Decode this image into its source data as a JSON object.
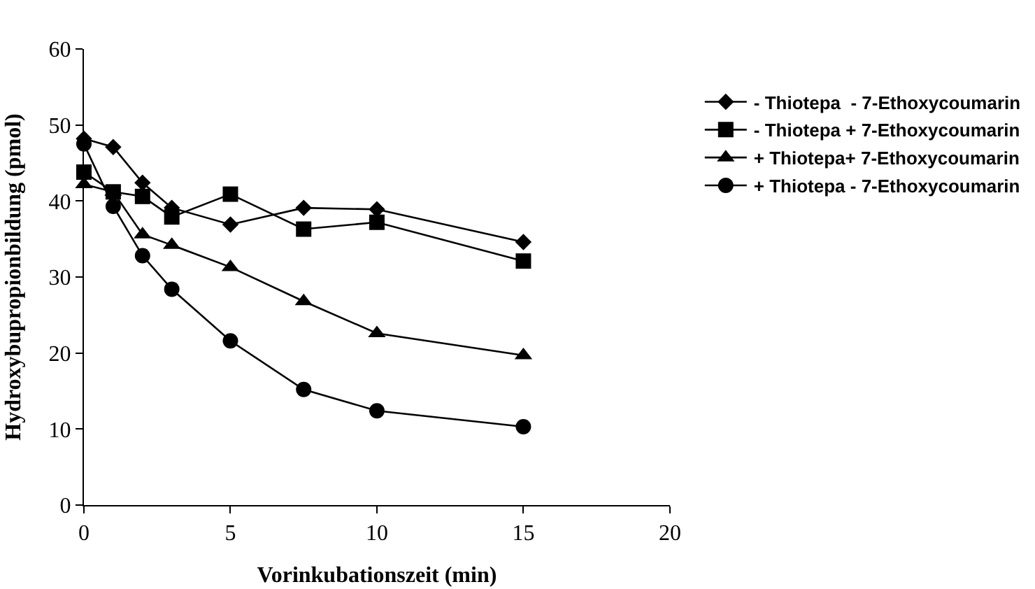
{
  "chart_data": {
    "type": "line",
    "xlabel": "Vorinkubationszeit (min)",
    "ylabel": "Hydroxybupropionbildung (pmol)",
    "x": [
      0,
      1,
      2,
      3,
      5,
      7.5,
      10,
      15
    ],
    "series": [
      {
        "name": "- Thiotepa  - 7-Ethoxycoumarin",
        "color": "#000000",
        "marker": "diamond",
        "values": [
          48.2,
          47.1,
          42.4,
          39.1,
          36.9,
          39.1,
          38.9,
          34.6
        ]
      },
      {
        "name": "- Thiotepa + 7-Ethoxycoumarin",
        "color": "#000000",
        "marker": "square",
        "values": [
          43.8,
          41.2,
          40.6,
          37.9,
          40.9,
          36.3,
          37.2,
          32.1
        ]
      },
      {
        "name": "+ Thiotepa+ 7-Ethoxycoumarin",
        "color": "#000000",
        "marker": "triangle",
        "values": [
          42.2,
          41.2,
          35.6,
          34.2,
          31.3,
          26.8,
          22.6,
          19.7
        ]
      },
      {
        "name": "+ Thiotepa - 7-Ethoxycoumarin",
        "color": "#000000",
        "marker": "circle",
        "values": [
          47.5,
          39.3,
          32.8,
          28.4,
          21.6,
          15.2,
          12.4,
          10.3
        ]
      }
    ],
    "xlim": [
      0,
      20
    ],
    "xticks": [
      0,
      5,
      10,
      15,
      20
    ],
    "ylim": [
      0,
      60
    ],
    "yticks": [
      0,
      10,
      20,
      30,
      40,
      50,
      60
    ],
    "legend": "right",
    "line_style": "solid"
  }
}
